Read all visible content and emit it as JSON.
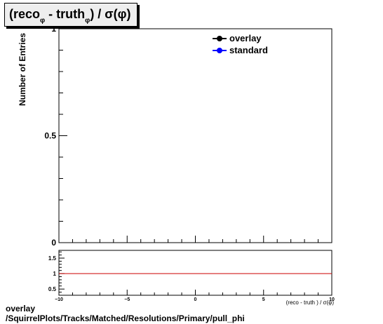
{
  "title_parts": {
    "reco": "(reco",
    "reco_sub": "φ",
    "minus_truth": " - truth",
    "truth_sub": "φ",
    "rest": ") /  σ(φ)"
  },
  "legend": [
    {
      "label": "overlay",
      "color": "#000000"
    },
    {
      "label": "standard",
      "color": "#0000ff"
    }
  ],
  "footer": {
    "line1": "overlay",
    "line2": "/SquirrelPlots/Tracks/Matched/Resolutions/Primary/pull_phi"
  },
  "chart_data": [
    {
      "type": "line",
      "title": "(recoφ - truthφ) / σ(φ)",
      "xlabel": "(reco - truth ) / σ(φ)",
      "ylabel": "Number of Entries",
      "xlim": [
        -10,
        10
      ],
      "ylim": [
        0,
        1
      ],
      "y_ticks": [
        "0",
        "0.5",
        "1"
      ],
      "series": [
        {
          "name": "overlay",
          "x": [],
          "y": []
        },
        {
          "name": "standard",
          "x": [],
          "y": []
        }
      ],
      "legend_position": "top-right",
      "grid": false
    },
    {
      "type": "line",
      "role": "ratio",
      "xlim": [
        -10,
        10
      ],
      "ylim": [
        0.3,
        1.75
      ],
      "x_ticks": [
        "−10",
        "−5",
        "0",
        "5",
        "10"
      ],
      "y_ticks": [
        "0.5",
        "1",
        "1.5"
      ],
      "reference_line": {
        "y": 1,
        "color": "#cc0000"
      },
      "grid": false
    }
  ]
}
